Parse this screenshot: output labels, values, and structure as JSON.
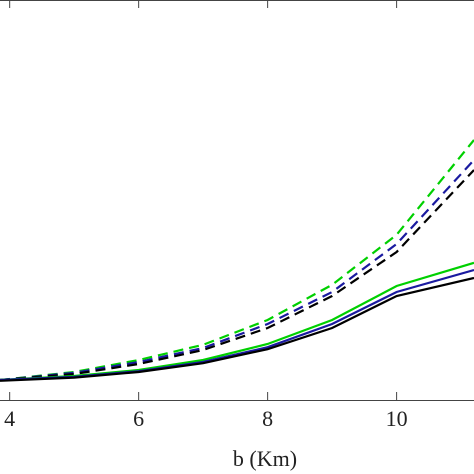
{
  "chart_data": {
    "type": "line",
    "x_label": "b (Km)",
    "x": [
      3.85,
      5,
      6,
      7,
      8,
      9,
      10,
      11.2
    ],
    "xlim": [
      3.85,
      11.2
    ],
    "xticks": [
      4,
      6,
      8,
      10
    ],
    "ylim": [
      0,
      1
    ],
    "series": [
      {
        "color": "#00d000",
        "dashed": true,
        "values": [
          0.05,
          0.07,
          0.1,
          0.138,
          0.2,
          0.288,
          0.413,
          0.65
        ]
      },
      {
        "color": "#1a1aa0",
        "dashed": true,
        "values": [
          0.05,
          0.068,
          0.095,
          0.13,
          0.19,
          0.27,
          0.39,
          0.6
        ]
      },
      {
        "color": "#000000",
        "dashed": true,
        "values": [
          0.05,
          0.065,
          0.09,
          0.125,
          0.18,
          0.26,
          0.37,
          0.575
        ]
      },
      {
        "color": "#00d000",
        "dashed": false,
        "values": [
          0.05,
          0.06,
          0.075,
          0.1,
          0.14,
          0.2,
          0.285,
          0.343
        ]
      },
      {
        "color": "#1a1aa0",
        "dashed": false,
        "values": [
          0.05,
          0.058,
          0.072,
          0.095,
          0.132,
          0.19,
          0.27,
          0.325
        ]
      },
      {
        "color": "#000000",
        "dashed": false,
        "values": [
          0.048,
          0.056,
          0.07,
          0.092,
          0.127,
          0.18,
          0.26,
          0.305
        ]
      }
    ]
  }
}
